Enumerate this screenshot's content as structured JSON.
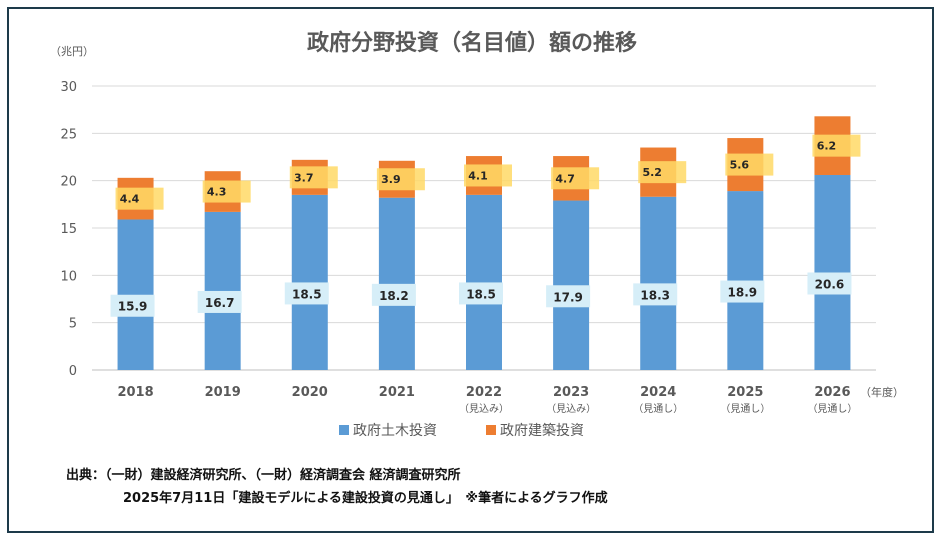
{
  "chart_data": {
    "type": "bar",
    "stacked": true,
    "title": "政府分野投資（名目値）額の推移",
    "y_unit_label": "（兆円）",
    "x_unit_label": "（年度）",
    "ylim": [
      0,
      30
    ],
    "yticks": [
      0,
      5,
      10,
      15,
      20,
      25,
      30
    ],
    "grid": true,
    "legend_position": "bottom",
    "categories": [
      "2018",
      "2019",
      "2020",
      "2021",
      "2022",
      "2023",
      "2024",
      "2025",
      "2026"
    ],
    "category_notes": [
      "",
      "",
      "",
      "",
      "（見込み）",
      "（見込み）",
      "（見通し）",
      "（見通し）",
      "（見通し）"
    ],
    "series": [
      {
        "name": "政府土木投資",
        "color": "#5b9bd5",
        "values": [
          15.9,
          16.7,
          18.5,
          18.2,
          18.5,
          17.9,
          18.3,
          18.9,
          20.6
        ]
      },
      {
        "name": "政府建築投資",
        "color": "#ed7d31",
        "values": [
          4.4,
          4.3,
          3.7,
          3.9,
          4.1,
          4.7,
          5.2,
          5.6,
          6.2
        ]
      }
    ],
    "label_colors": {
      "civil": "#d6eef8",
      "building": "#ffd966"
    }
  },
  "source": {
    "line1": "出典：（一財）建設経済研究所、（一財）経済調査会 経済調査研究所",
    "line2": "2025年7月11日「建設モデルによる建設投資の見通し」　※筆者によるグラフ作成"
  }
}
